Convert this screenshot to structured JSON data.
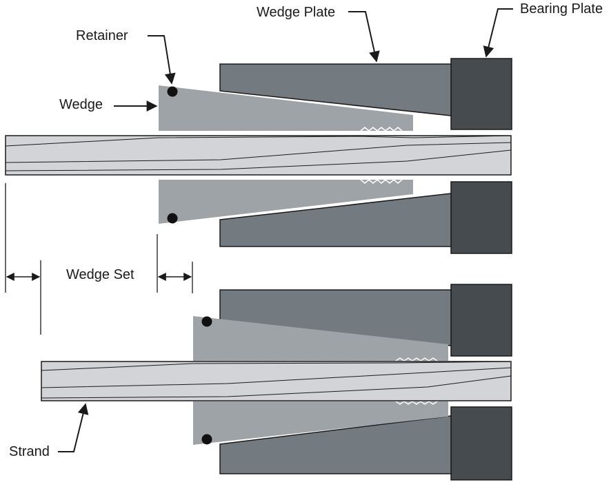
{
  "labels": {
    "wedge_plate": "Wedge Plate",
    "bearing_plate": "Bearing Plate",
    "retainer": "Retainer",
    "wedge": "Wedge",
    "wedge_set": "Wedge Set",
    "strand": "Strand"
  },
  "colors": {
    "bearing_plate": "#454b4f",
    "wedge_plate": "#737a80",
    "wedge": "#9ea3a8",
    "strand": "#d2d4d8",
    "outline": "#1a1a1a",
    "retainer": "#111111"
  }
}
